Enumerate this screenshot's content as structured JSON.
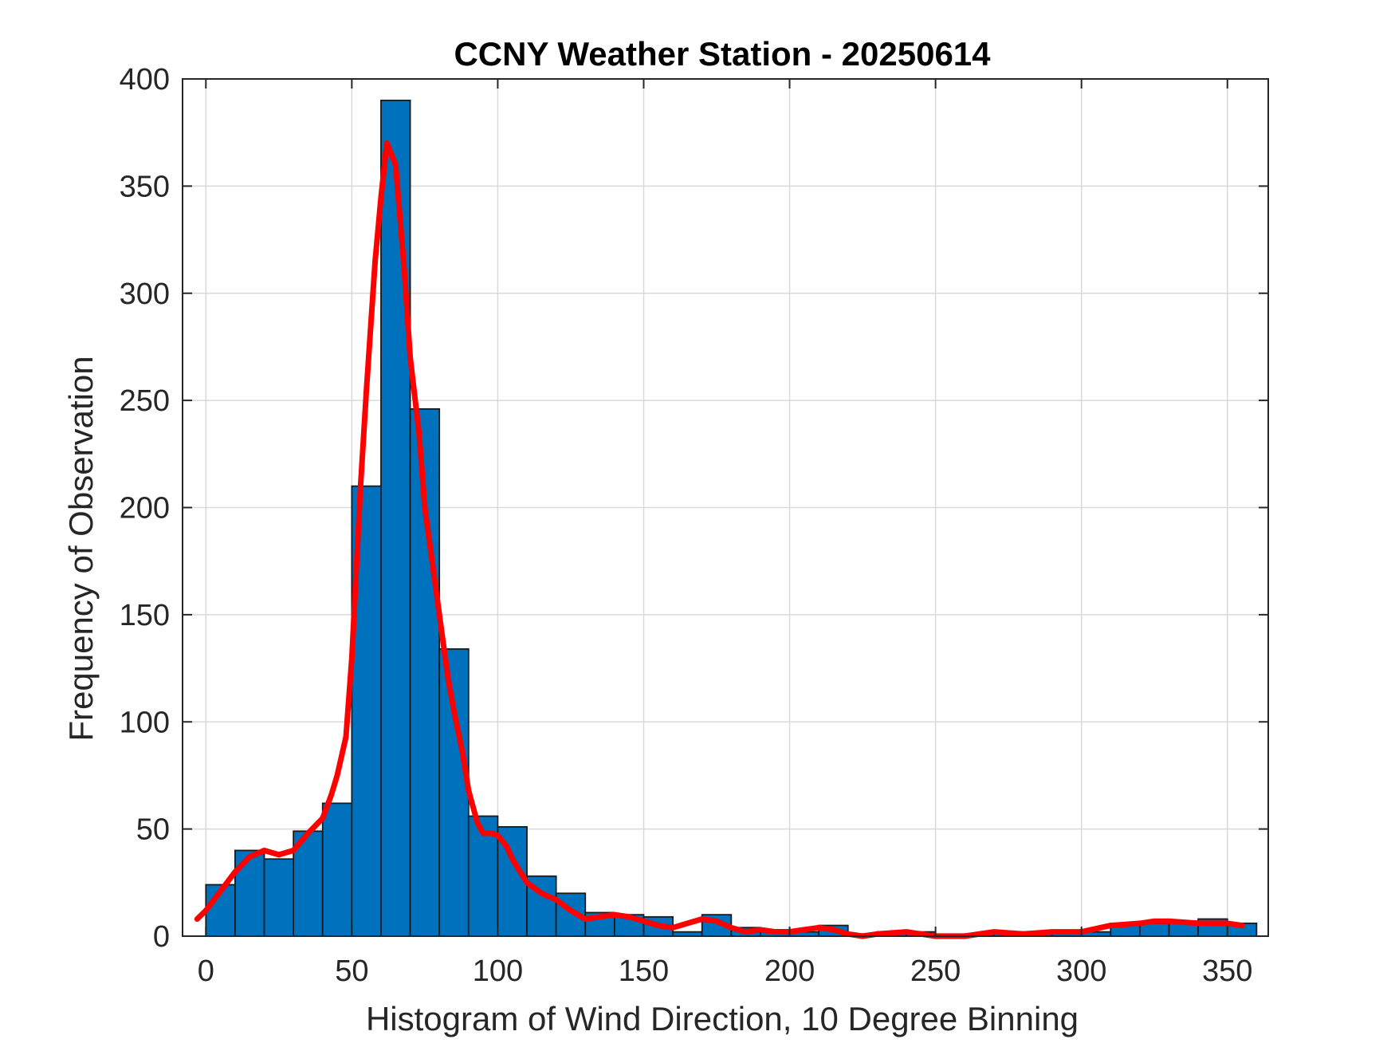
{
  "chart_data": {
    "type": "bar",
    "title": "CCNY Weather Station - 20250614",
    "xlabel": "Histogram of Wind Direction, 10 Degree Binning",
    "ylabel": "Frequency of Observation",
    "xlim": [
      -8,
      364
    ],
    "ylim": [
      0,
      400
    ],
    "xticks": [
      0,
      50,
      100,
      150,
      200,
      250,
      300,
      350
    ],
    "yticks": [
      0,
      50,
      100,
      150,
      200,
      250,
      300,
      350,
      400
    ],
    "grid": true,
    "bin_width": 10,
    "bins": [
      {
        "left": 0,
        "value": 24
      },
      {
        "left": 10,
        "value": 40
      },
      {
        "left": 20,
        "value": 36
      },
      {
        "left": 30,
        "value": 49
      },
      {
        "left": 40,
        "value": 62
      },
      {
        "left": 50,
        "value": 210
      },
      {
        "left": 60,
        "value": 390
      },
      {
        "left": 70,
        "value": 246
      },
      {
        "left": 80,
        "value": 134
      },
      {
        "left": 90,
        "value": 56
      },
      {
        "left": 100,
        "value": 51
      },
      {
        "left": 110,
        "value": 28
      },
      {
        "left": 120,
        "value": 20
      },
      {
        "left": 130,
        "value": 11
      },
      {
        "left": 140,
        "value": 10
      },
      {
        "left": 150,
        "value": 9
      },
      {
        "left": 160,
        "value": 2
      },
      {
        "left": 170,
        "value": 10
      },
      {
        "left": 180,
        "value": 4
      },
      {
        "left": 190,
        "value": 3
      },
      {
        "left": 200,
        "value": 2
      },
      {
        "left": 210,
        "value": 5
      },
      {
        "left": 220,
        "value": 1
      },
      {
        "left": 230,
        "value": 2
      },
      {
        "left": 240,
        "value": 2
      },
      {
        "left": 250,
        "value": 1
      },
      {
        "left": 260,
        "value": 1
      },
      {
        "left": 270,
        "value": 2
      },
      {
        "left": 280,
        "value": 1
      },
      {
        "left": 290,
        "value": 2
      },
      {
        "left": 300,
        "value": 2
      },
      {
        "left": 310,
        "value": 6
      },
      {
        "left": 320,
        "value": 6
      },
      {
        "left": 330,
        "value": 7
      },
      {
        "left": 340,
        "value": 8
      },
      {
        "left": 350,
        "value": 6
      }
    ],
    "fit_line": {
      "x": [
        -3,
        0,
        5,
        10,
        15,
        20,
        25,
        30,
        35,
        40,
        43,
        45,
        48,
        50,
        53,
        55,
        58,
        60,
        62,
        65,
        68,
        70,
        73,
        75,
        78,
        80,
        83,
        85,
        88,
        90,
        93,
        95,
        98,
        100,
        103,
        105,
        110,
        115,
        120,
        125,
        130,
        135,
        140,
        145,
        150,
        155,
        160,
        165,
        170,
        175,
        180,
        185,
        190,
        195,
        200,
        205,
        210,
        215,
        220,
        225,
        230,
        240,
        250,
        260,
        270,
        280,
        290,
        300,
        310,
        320,
        325,
        330,
        340,
        350,
        355
      ],
      "y": [
        8,
        12,
        21,
        30,
        37,
        40,
        38,
        40,
        48,
        55,
        66,
        75,
        93,
        130,
        210,
        255,
        315,
        345,
        370,
        360,
        310,
        270,
        235,
        200,
        170,
        150,
        120,
        105,
        85,
        68,
        53,
        48,
        48,
        47,
        42,
        36,
        25,
        20,
        17,
        12,
        8,
        9,
        10,
        9,
        7,
        5,
        4,
        6,
        8,
        7,
        4,
        2,
        3,
        2,
        2,
        3,
        4,
        3,
        1,
        0,
        1,
        2,
        0,
        0,
        2,
        1,
        2,
        2,
        5,
        6,
        7,
        7,
        6,
        6,
        5
      ]
    },
    "colors": {
      "bar_fill": "#0072BD",
      "fit_line": "#FF0000"
    }
  }
}
